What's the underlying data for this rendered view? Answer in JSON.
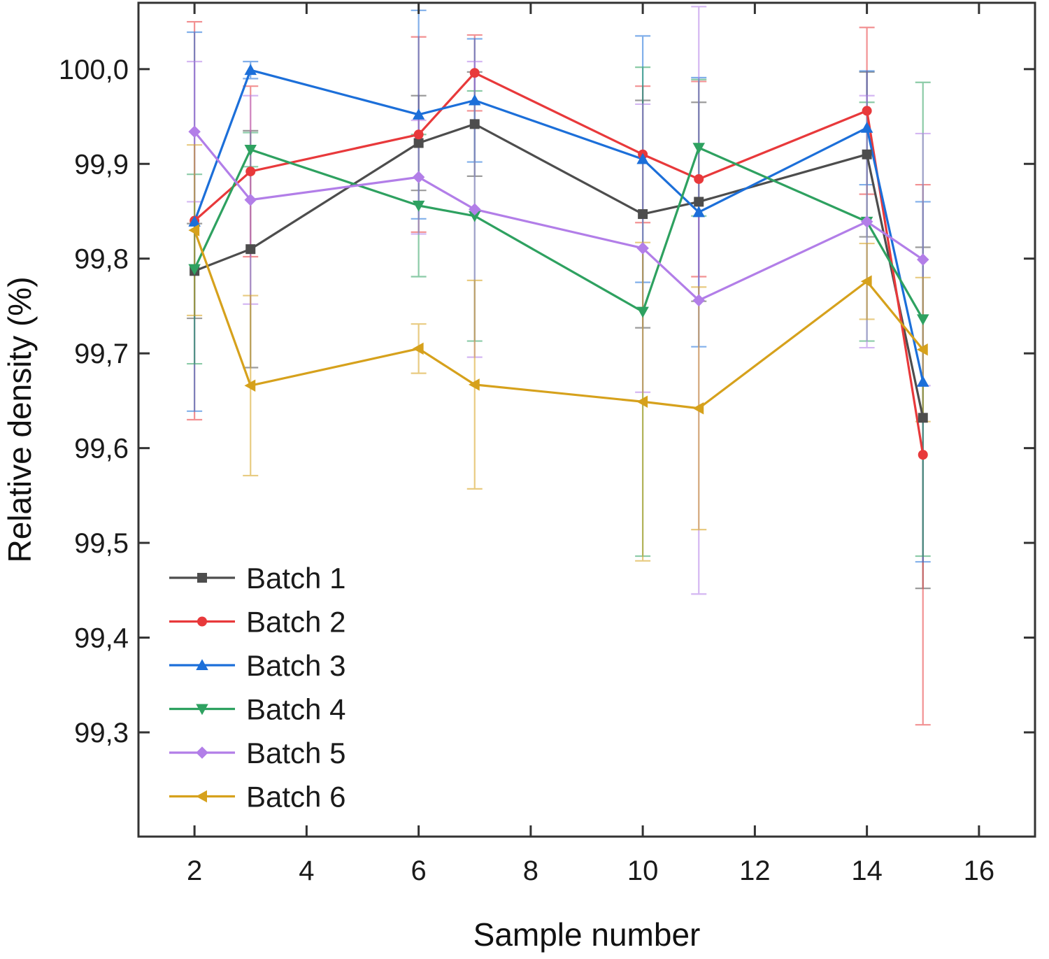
{
  "chart_data": {
    "type": "line",
    "title": "",
    "xlabel": "Sample number",
    "ylabel": "Relative density (%)",
    "xlim": [
      1.0,
      17.0
    ],
    "ylim": [
      99.19,
      100.07
    ],
    "xticks": [
      2,
      4,
      6,
      8,
      10,
      12,
      14,
      16
    ],
    "xtick_labels": [
      "2",
      "4",
      "6",
      "8",
      "10",
      "12",
      "14",
      "16"
    ],
    "yticks": [
      99.3,
      99.4,
      99.5,
      99.6,
      99.7,
      99.8,
      99.9,
      100.0
    ],
    "ytick_labels": [
      "99,3",
      "99,4",
      "99,5",
      "99,6",
      "99,7",
      "99,8",
      "99,9",
      "100,0"
    ],
    "grid": false,
    "legend_position": "bottom-left",
    "x": [
      2,
      3,
      6,
      7,
      10,
      11,
      14,
      15
    ],
    "series": [
      {
        "name": "Batch 1",
        "color": "#4d4d4d",
        "marker": "square",
        "values": [
          99.787,
          99.81,
          99.922,
          99.942,
          99.847,
          99.86,
          99.91,
          99.632
        ],
        "errors": [
          0.05,
          0.125,
          0.05,
          0.055,
          0.12,
          0.105,
          0.087,
          0.18
        ]
      },
      {
        "name": "Batch 2",
        "color": "#e8393b",
        "marker": "circle",
        "values": [
          99.84,
          99.892,
          99.931,
          99.996,
          99.91,
          99.884,
          99.956,
          99.593
        ],
        "errors": [
          0.21,
          0.09,
          0.103,
          0.04,
          0.072,
          0.103,
          0.088,
          0.285
        ]
      },
      {
        "name": "Batch 3",
        "color": "#1c6fd9",
        "marker": "triangle-up",
        "values": [
          99.839,
          99.999,
          99.952,
          99.967,
          99.905,
          99.849,
          99.938,
          99.67
        ],
        "errors": [
          0.2,
          0.009,
          0.11,
          0.065,
          0.13,
          0.142,
          0.06,
          0.19
        ]
      },
      {
        "name": "Batch 4",
        "color": "#2ea160",
        "marker": "triangle-down",
        "values": [
          99.789,
          99.915,
          99.856,
          99.845,
          99.744,
          99.917,
          99.839,
          99.736
        ],
        "errors": [
          0.1,
          0.018,
          0.075,
          0.132,
          0.258,
          0.072,
          0.126,
          0.25
        ]
      },
      {
        "name": "Batch 5",
        "color": "#b27ee8",
        "marker": "diamond",
        "values": [
          99.934,
          99.862,
          99.886,
          99.852,
          99.811,
          99.756,
          99.839,
          99.799
        ],
        "errors": [
          0.074,
          0.11,
          0.06,
          0.156,
          0.152,
          0.31,
          0.133,
          0.133
        ]
      },
      {
        "name": "Batch 6",
        "color": "#d6a11c",
        "marker": "triangle-left",
        "values": [
          99.83,
          99.666,
          99.705,
          99.667,
          99.649,
          99.642,
          99.776,
          99.704
        ],
        "errors": [
          0.09,
          0.095,
          0.026,
          0.11,
          0.168,
          0.128,
          0.04,
          0.076
        ]
      }
    ]
  }
}
